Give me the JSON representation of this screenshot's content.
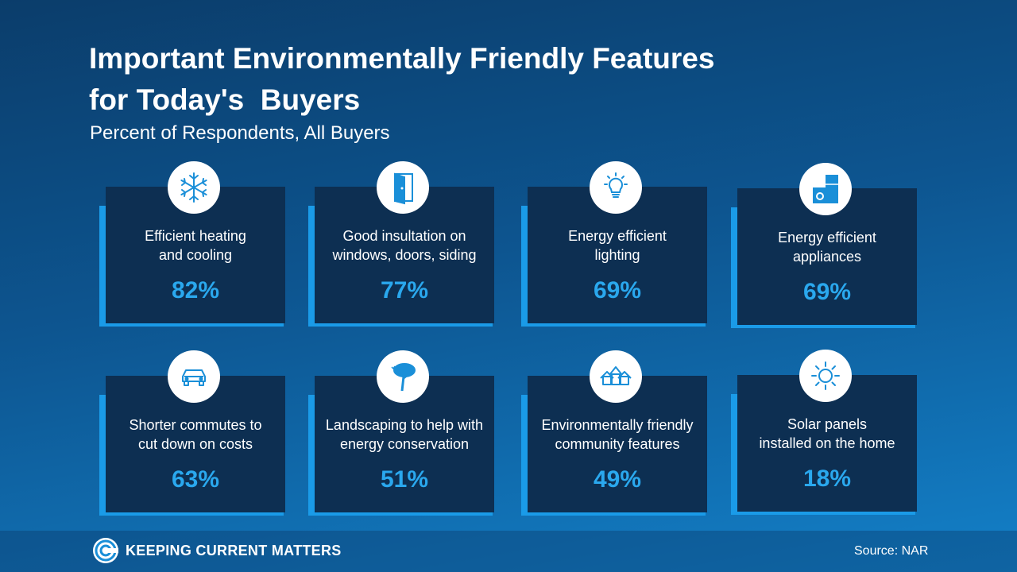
{
  "title_line1": "Important Environmentally Friendly Features",
  "title_line2": "for Today's  Buyers",
  "subtitle": "Percent of Respondents, All Buyers",
  "cards": [
    {
      "label": "Efficient heating\nand cooling",
      "value": "82%",
      "icon": "snowflake-icon"
    },
    {
      "label": "Good insultation on\nwindows, doors, siding",
      "value": "77%",
      "icon": "door-icon"
    },
    {
      "label": "Energy efficient\nlighting",
      "value": "69%",
      "icon": "lightbulb-icon"
    },
    {
      "label": "Energy efficient\nappliances",
      "value": "69%",
      "icon": "appliances-icon"
    },
    {
      "label": "Shorter commutes to\ncut down on costs",
      "value": "63%",
      "icon": "car-icon"
    },
    {
      "label": "Landscaping to help with\nenergy conservation",
      "value": "51%",
      "icon": "tree-icon"
    },
    {
      "label": "Environmentally friendly\ncommunity features",
      "value": "49%",
      "icon": "houses-icon"
    },
    {
      "label": "Solar panels\ninstalled on the home",
      "value": "18%",
      "icon": "sun-icon"
    }
  ],
  "logo_text": "KEEPING CURRENT MATTERS",
  "source": "Source: NAR",
  "colors": {
    "card": "#0d2f52",
    "accent": "#1a9be8",
    "value": "#2aa8ee"
  }
}
